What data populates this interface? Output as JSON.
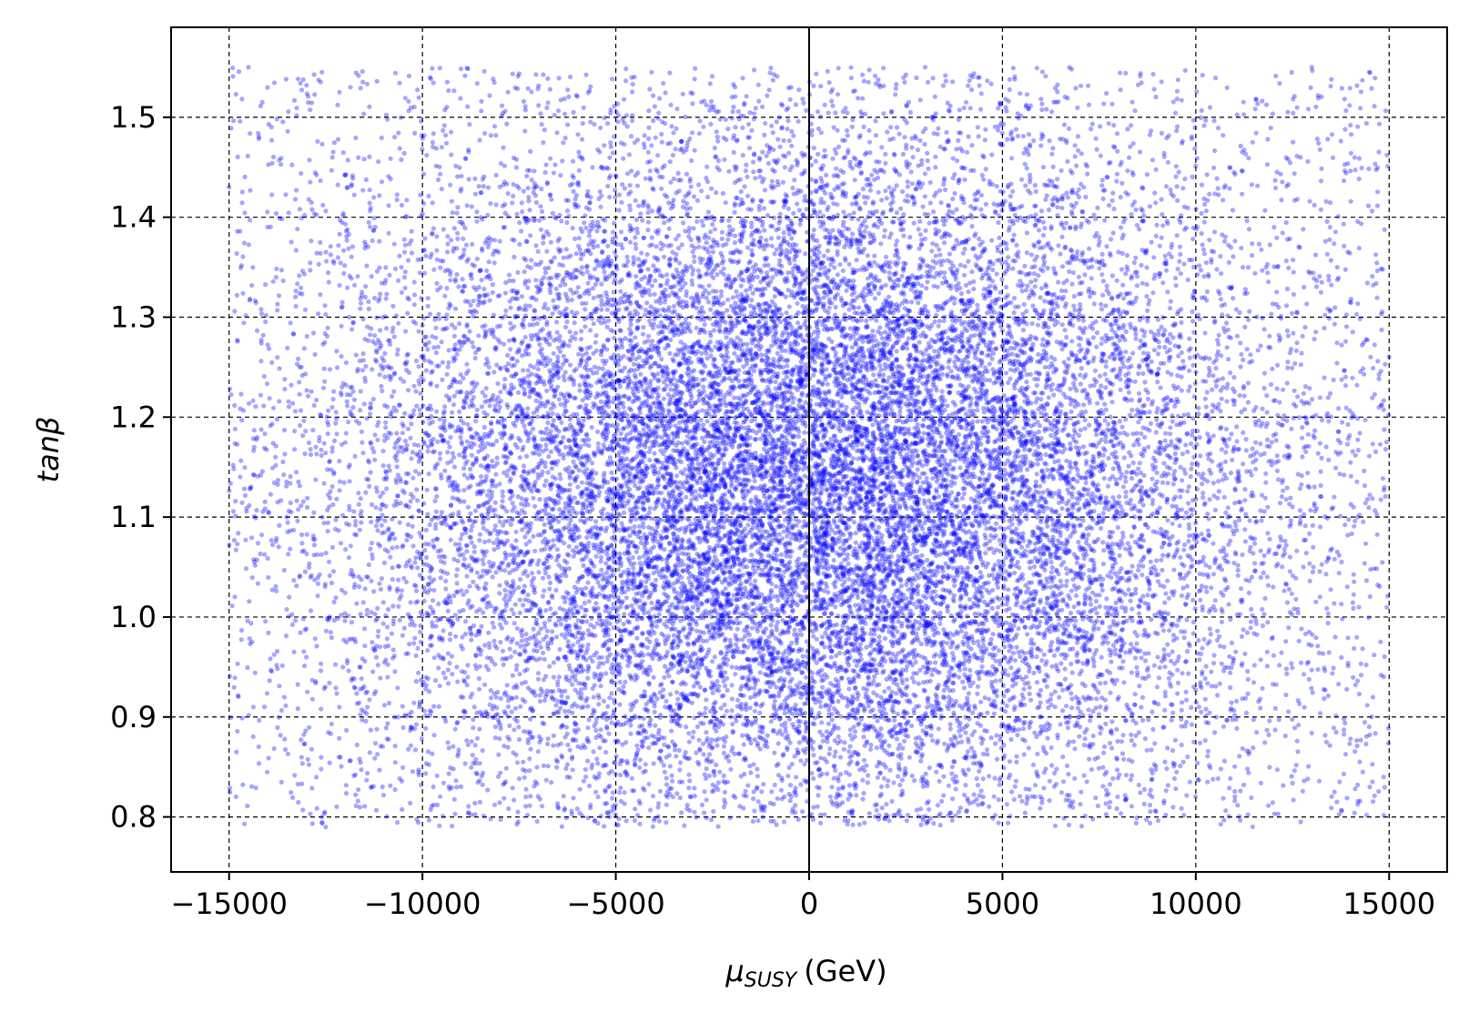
{
  "chart_data": {
    "type": "scatter",
    "title": "",
    "xlabel": {
      "symbol": "μ",
      "subscript": "SUSY",
      "unit": "(GeV)"
    },
    "ylabel": {
      "base": "tan",
      "symbol": "β"
    },
    "xlim": [
      -16500,
      16500
    ],
    "ylim": [
      0.745,
      1.59
    ],
    "xticks": [
      -15000,
      -10000,
      -5000,
      0,
      5000,
      10000,
      15000
    ],
    "xtick_labels": [
      "−15000",
      "−10000",
      "−5000",
      "0",
      "5000",
      "10000",
      "15000"
    ],
    "yticks": [
      0.8,
      0.9,
      1.0,
      1.1,
      1.2,
      1.3,
      1.4,
      1.5
    ],
    "ytick_labels": [
      "0.8",
      "0.9",
      "1.0",
      "1.1",
      "1.2",
      "1.3",
      "1.4",
      "1.5"
    ],
    "grid": true,
    "grid_style": "dashed",
    "vertical_reference_line_x": 0,
    "marker_color": "#0000ff",
    "marker_alpha": 0.35,
    "distribution": {
      "n_points": 22000,
      "x_range": [
        -15000,
        15000
      ],
      "y_range": [
        0.79,
        1.55
      ],
      "x_center": 0,
      "x_sigma": 6000,
      "y_center": 1.13,
      "y_sigma": 0.17
    },
    "series": [
      {
        "values_sample": [
          {
            "x": -14500,
            "y": 1.55
          },
          {
            "x": -15000,
            "y": 1.43
          },
          {
            "x": -13800,
            "y": 1.16
          },
          {
            "x": -12500,
            "y": 0.79
          },
          {
            "x": -11000,
            "y": 1.25
          },
          {
            "x": -9500,
            "y": 1.47
          },
          {
            "x": -8000,
            "y": 1.05
          },
          {
            "x": -6500,
            "y": 0.81
          },
          {
            "x": -5000,
            "y": 1.2
          },
          {
            "x": -3500,
            "y": 1.34
          },
          {
            "x": -2000,
            "y": 0.95
          },
          {
            "x": -500,
            "y": 1.1
          },
          {
            "x": 0,
            "y": 1.15
          },
          {
            "x": 1500,
            "y": 1.28
          },
          {
            "x": 3000,
            "y": 1.55
          },
          {
            "x": 4500,
            "y": 0.82
          },
          {
            "x": 6000,
            "y": 1.12
          },
          {
            "x": 7500,
            "y": 1.38
          },
          {
            "x": 9000,
            "y": 0.93
          },
          {
            "x": 10500,
            "y": 1.21
          },
          {
            "x": 12000,
            "y": 1.03
          },
          {
            "x": 13000,
            "y": 1.55
          },
          {
            "x": 14500,
            "y": 0.83
          },
          {
            "x": 15000,
            "y": 1.26
          }
        ]
      }
    ]
  }
}
